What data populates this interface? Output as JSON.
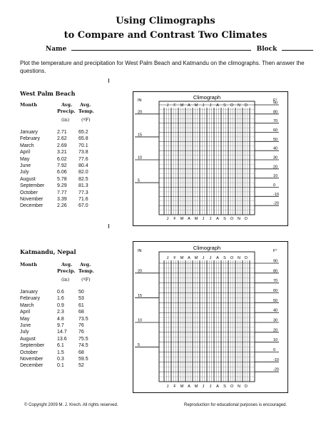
{
  "header": {
    "title_line1": "Using Climographs",
    "title_line2": "to Compare and Contrast Two Climates",
    "name_label": "Name",
    "block_label": "Block"
  },
  "instructions": "Plot the temperature and precipitation for West Palm Beach and Katmandu on the climographs. Then answer the questions.",
  "table_headers": {
    "month": "Month",
    "avg1": "Avg.",
    "avg2": "Avg.",
    "precip": "Precip.",
    "temp": "Temp.",
    "in": "(in)",
    "f": "(ºF)"
  },
  "west_palm": {
    "title": "West Palm Beach",
    "rows": [
      {
        "month": "January",
        "precip": "2.71",
        "temp": "65.2"
      },
      {
        "month": "February",
        "precip": "2.62",
        "temp": "65.8"
      },
      {
        "month": "March",
        "precip": "2.69",
        "temp": "70.1"
      },
      {
        "month": "April",
        "precip": "3.21",
        "temp": "73.8"
      },
      {
        "month": "May",
        "precip": "6.02",
        "temp": "77.6"
      },
      {
        "month": "June",
        "precip": "7.92",
        "temp": "80.4"
      },
      {
        "month": "July",
        "precip": "6.06",
        "temp": "82.0"
      },
      {
        "month": "August",
        "precip": "5.78",
        "temp": "82.5"
      },
      {
        "month": "September",
        "precip": "9.29",
        "temp": "81.3"
      },
      {
        "month": "October",
        "precip": "7.77",
        "temp": "77.3"
      },
      {
        "month": "November",
        "precip": "3.39",
        "temp": "71.6"
      },
      {
        "month": "December",
        "precip": "2.26",
        "temp": "67.0"
      }
    ]
  },
  "katmandu": {
    "title": "Katmandu, Nepal",
    "rows": [
      {
        "month": "January",
        "precip": "0.6",
        "temp": "50"
      },
      {
        "month": "February",
        "precip": "1.6",
        "temp": "53"
      },
      {
        "month": "March",
        "precip": "0.9",
        "temp": "61"
      },
      {
        "month": "April",
        "precip": "2.3",
        "temp": "68"
      },
      {
        "month": "May",
        "precip": "4.8",
        "temp": "73.5"
      },
      {
        "month": "June",
        "precip": "9.7",
        "temp": "76"
      },
      {
        "month": "July",
        "precip": "14.7",
        "temp": "76"
      },
      {
        "month": "August",
        "precip": "13.6",
        "temp": "75.5"
      },
      {
        "month": "September",
        "precip": "6.1",
        "temp": "74.5"
      },
      {
        "month": "October",
        "precip": "1.5",
        "temp": "68"
      },
      {
        "month": "November",
        "precip": "0.3",
        "temp": "59.5"
      },
      {
        "month": "December",
        "precip": "0.1",
        "temp": "52"
      }
    ]
  },
  "climograph": {
    "title": "Climograph",
    "left_unit": "IN",
    "right_unit": "F°",
    "months": [
      "J",
      "F",
      "M",
      "A",
      "M",
      "J",
      "J",
      "A",
      "S",
      "O",
      "N",
      "D"
    ],
    "left_ticks": [
      "20",
      "15",
      "10",
      "5"
    ],
    "right_ticks": [
      "90",
      "80",
      "70",
      "60",
      "50",
      "40",
      "30",
      "20",
      "10",
      "0",
      "-10",
      "-20"
    ]
  },
  "footer": {
    "copyright": "© Copyright 2009  M. J. Krech. All rights reserved.",
    "reproduction": "Reproduction for educational purposes is encouraged."
  }
}
